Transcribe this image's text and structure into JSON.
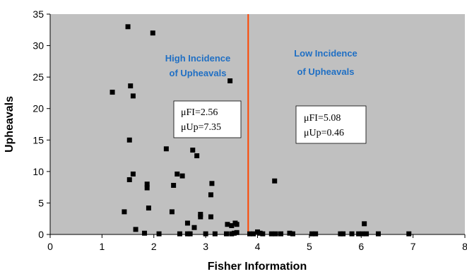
{
  "chart_data": {
    "type": "scatter",
    "xlabel": "Fisher Information",
    "ylabel": "Upheavals",
    "xlim": [
      0,
      8
    ],
    "ylim": [
      0,
      35
    ],
    "xticks": [
      "0",
      "1",
      "2",
      "3",
      "4",
      "5",
      "6",
      "7",
      "8"
    ],
    "yticks": [
      "0",
      "5",
      "10",
      "15",
      "20",
      "25",
      "30",
      "35"
    ],
    "grid": false,
    "plot_background": "#c0c0c0",
    "marker_color": "#000000",
    "threshold": {
      "x": 3.82,
      "color": "#ff4500"
    },
    "regions": [
      {
        "label_line1": "High Incidence",
        "label_line2": "of Upheavals",
        "stat1": "μFI=2.56",
        "stat2": "μUp=7.35"
      },
      {
        "label_line1": "Low Incidence",
        "label_line2": "of Upheavals",
        "stat1": "μFI=5.08",
        "stat2": "μUp=0.46"
      }
    ],
    "points": [
      [
        1.5,
        33
      ],
      [
        1.98,
        32
      ],
      [
        3.47,
        24.4
      ],
      [
        1.2,
        22.6
      ],
      [
        1.55,
        23.6
      ],
      [
        1.6,
        22
      ],
      [
        1.53,
        15
      ],
      [
        2.24,
        13.6
      ],
      [
        2.75,
        13.4
      ],
      [
        2.83,
        12.5
      ],
      [
        1.6,
        9.6
      ],
      [
        2.45,
        9.6
      ],
      [
        2.55,
        9.3
      ],
      [
        1.53,
        8.7
      ],
      [
        4.33,
        8.5
      ],
      [
        3.12,
        8.1
      ],
      [
        1.87,
        8
      ],
      [
        1.87,
        7.4
      ],
      [
        2.38,
        7.8
      ],
      [
        3.1,
        6.3
      ],
      [
        1.9,
        4.2
      ],
      [
        1.43,
        3.6
      ],
      [
        2.35,
        3.6
      ],
      [
        2.9,
        3.2
      ],
      [
        2.9,
        2.8
      ],
      [
        3.1,
        2.8
      ],
      [
        2.65,
        1.8
      ],
      [
        3.57,
        1.8
      ],
      [
        3.42,
        1.6
      ],
      [
        3.5,
        1.4
      ],
      [
        3.6,
        1.6
      ],
      [
        6.06,
        1.7
      ],
      [
        2.78,
        1.1
      ],
      [
        1.65,
        0.8
      ],
      [
        1.82,
        0.2
      ],
      [
        2.1,
        0.1
      ],
      [
        2.5,
        0.1
      ],
      [
        2.65,
        0.1
      ],
      [
        2.7,
        0.1
      ],
      [
        3.0,
        0.1
      ],
      [
        3.18,
        0.1
      ],
      [
        3.4,
        0.1
      ],
      [
        3.5,
        0.1
      ],
      [
        3.55,
        0.2
      ],
      [
        3.6,
        0.3
      ],
      [
        3.85,
        0.1
      ],
      [
        3.92,
        0.1
      ],
      [
        4.0,
        0.4
      ],
      [
        4.05,
        0.2
      ],
      [
        4.1,
        0.1
      ],
      [
        4.27,
        0.1
      ],
      [
        4.35,
        0.1
      ],
      [
        4.45,
        0.1
      ],
      [
        4.62,
        0.2
      ],
      [
        4.68,
        0.1
      ],
      [
        5.05,
        0.1
      ],
      [
        5.12,
        0.1
      ],
      [
        5.6,
        0.1
      ],
      [
        5.65,
        0.1
      ],
      [
        5.82,
        0.1
      ],
      [
        5.95,
        0.1
      ],
      [
        6.02,
        0.1
      ],
      [
        6.1,
        0.1
      ],
      [
        6.33,
        0.1
      ],
      [
        6.92,
        0.1
      ]
    ]
  }
}
